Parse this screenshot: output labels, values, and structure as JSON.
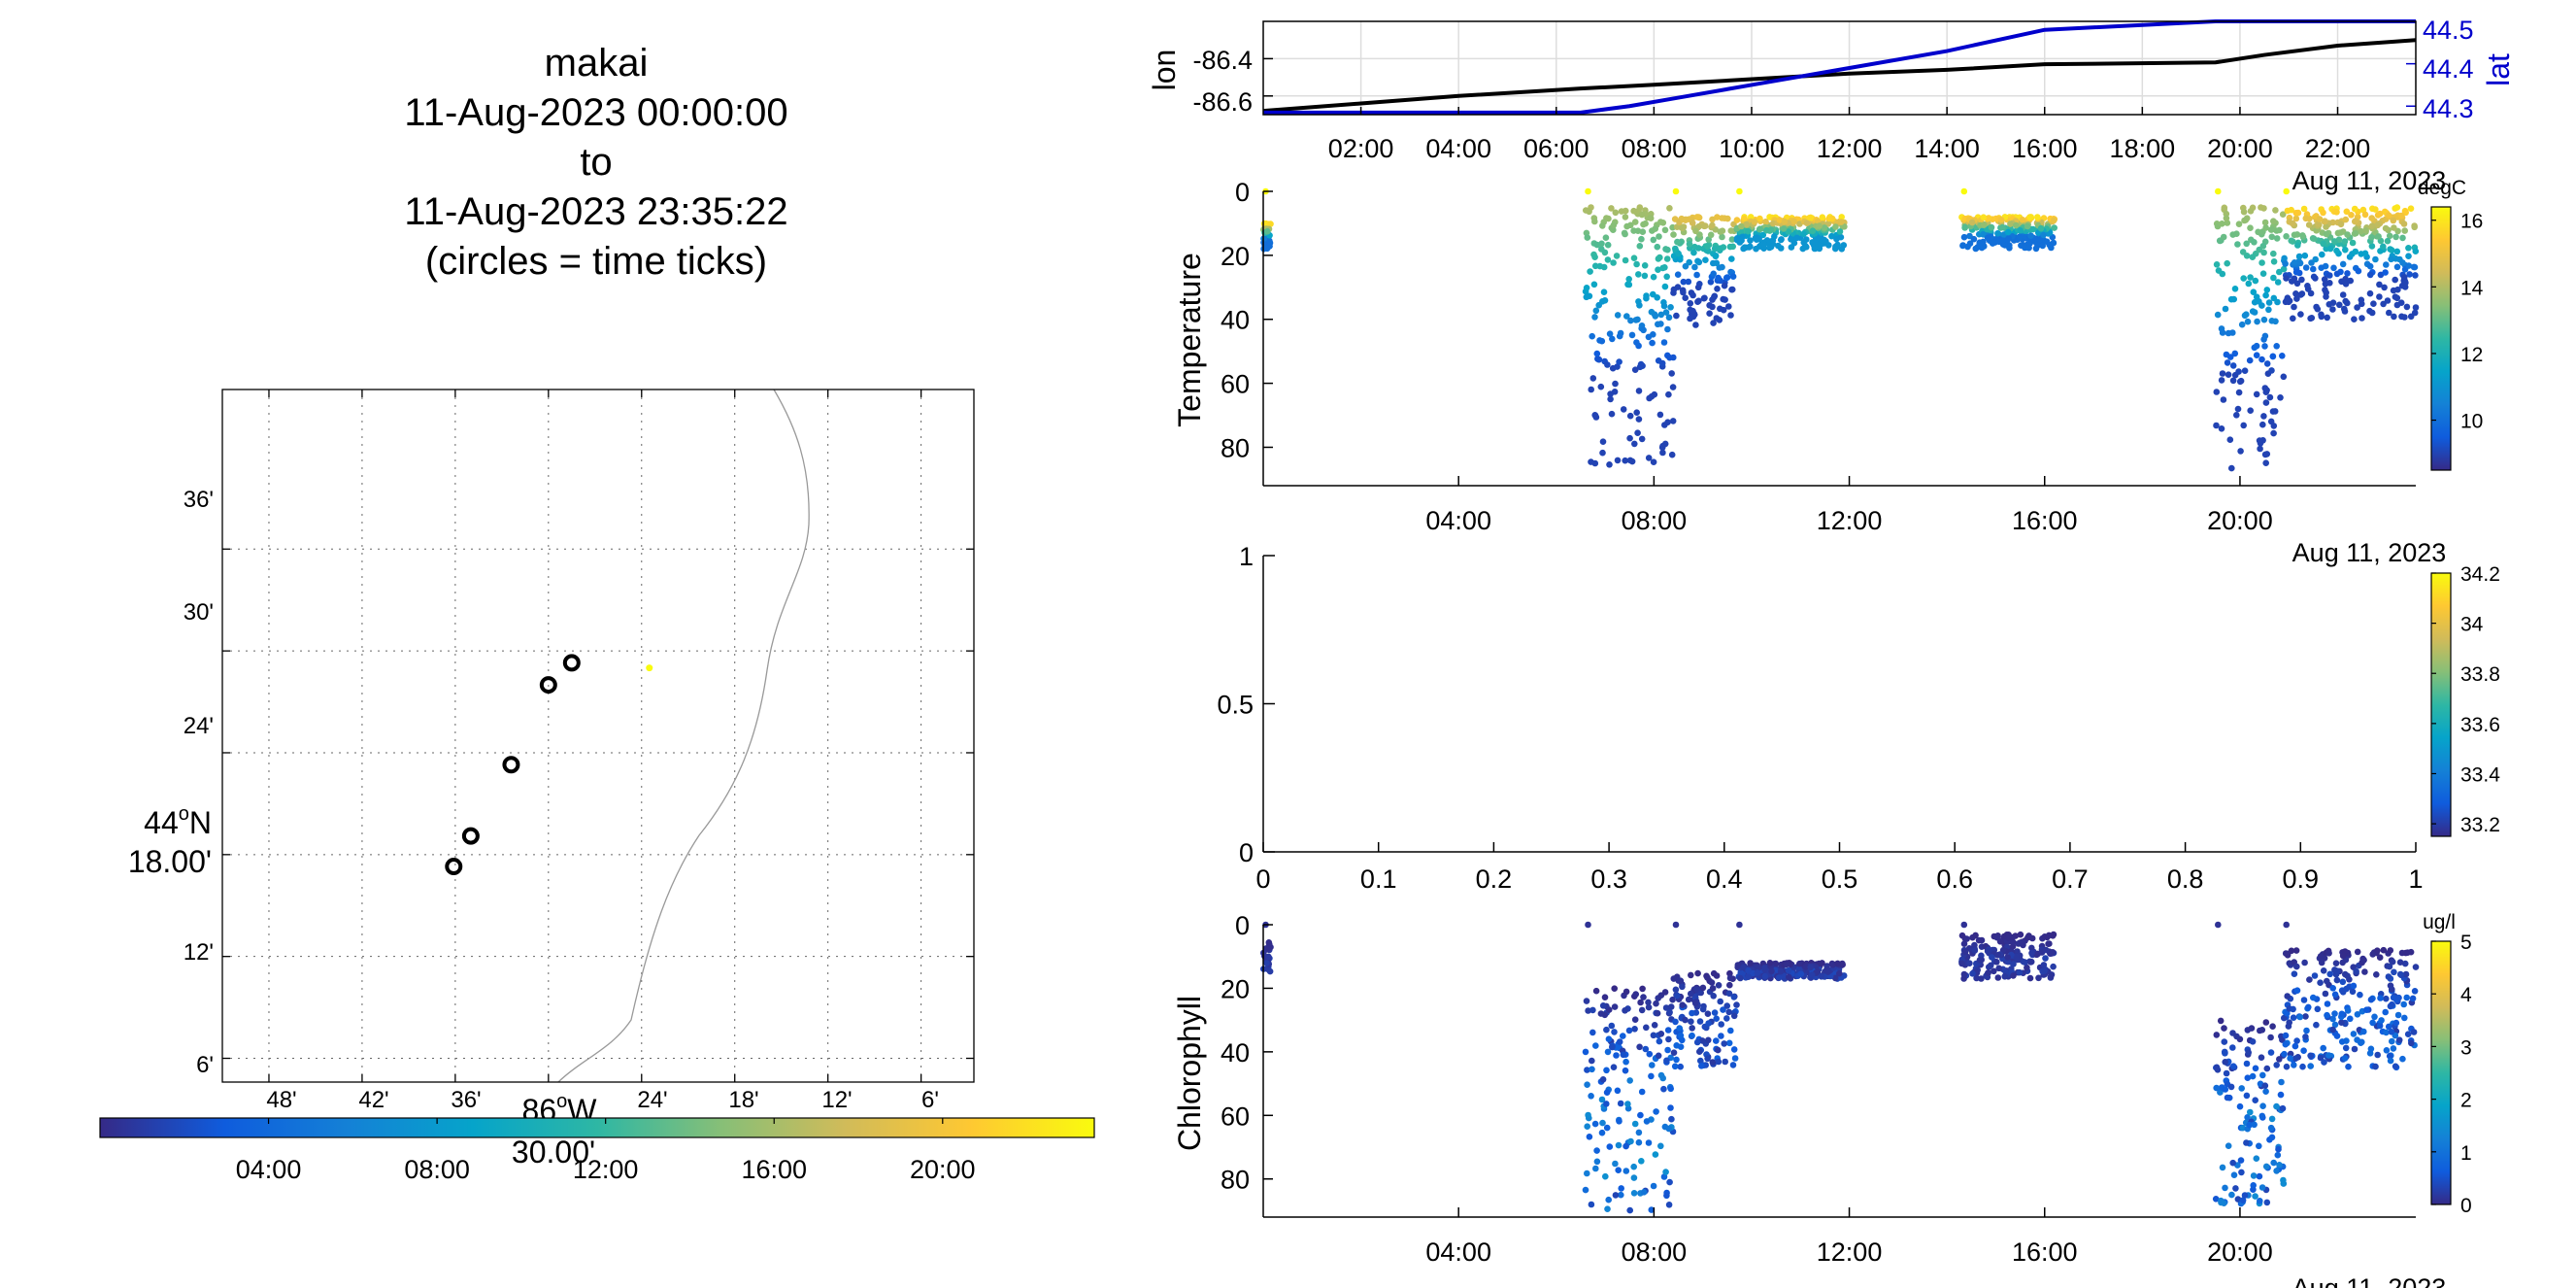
{
  "title": {
    "lines": [
      "makai",
      "11-Aug-2023 00:00:00",
      "to",
      "11-Aug-2023 23:35:22",
      "(circles = time ticks)"
    ]
  },
  "map": {
    "lat_labels": [
      "36'",
      "30'",
      "24'",
      "18.00'",
      "12'",
      "6'"
    ],
    "lat_degree_label": "44",
    "lat_degree_suffix": "N",
    "lon_labels": [
      "48'",
      "42'",
      "36'",
      "30.00'",
      "24'",
      "18'",
      "12'",
      "6'"
    ],
    "lon_degree_label": "86",
    "lon_degree_suffix": "W",
    "time_circles": [
      {
        "lon_min": 28.5,
        "lat_min": 29.3
      },
      {
        "lon_min": 30.0,
        "lat_min": 28.0
      },
      {
        "lon_min": 32.4,
        "lat_min": 23.3
      },
      {
        "lon_min": 35.0,
        "lat_min": 19.1
      },
      {
        "lon_min": 36.1,
        "lat_min": 17.3
      }
    ],
    "yellow_point": {
      "lon_min": 23.5,
      "lat_min": 29.0
    },
    "colorbar_ticks": [
      "04:00",
      "08:00",
      "12:00",
      "16:00",
      "20:00"
    ],
    "colorbar_range_hours": [
      0,
      23.6
    ]
  },
  "chart_data": [
    {
      "type": "line",
      "name": "lon-lat",
      "xlabel": "Aug 11, 2023",
      "x_ticks": [
        "02:00",
        "04:00",
        "06:00",
        "08:00",
        "10:00",
        "12:00",
        "14:00",
        "16:00",
        "18:00",
        "20:00",
        "22:00"
      ],
      "xlim_hours": [
        0,
        23.6
      ],
      "left_axis": {
        "label": "lon",
        "ticks": [
          "-86.4",
          "-86.6"
        ],
        "ylim": [
          -86.7,
          -86.2
        ],
        "color": "#000000"
      },
      "right_axis": {
        "label": "lat",
        "ticks": [
          "44.5",
          "44.4",
          "44.3"
        ],
        "ylim": [
          44.28,
          44.5
        ],
        "color": "#0000cc"
      },
      "series": [
        {
          "axis": "left",
          "color": "#000000",
          "x": [
            0,
            2,
            4,
            6.5,
            8,
            10,
            12,
            14,
            16,
            19.5,
            20.5,
            22,
            23.6
          ],
          "y": [
            -86.68,
            -86.64,
            -86.6,
            -86.56,
            -86.54,
            -86.51,
            -86.48,
            -86.46,
            -86.43,
            -86.42,
            -86.38,
            -86.33,
            -86.3
          ]
        },
        {
          "axis": "right",
          "color": "#0000cc",
          "x": [
            0,
            6.5,
            7.5,
            8.5,
            10,
            12,
            14,
            16,
            19.5,
            23.6
          ],
          "y": [
            44.285,
            44.285,
            44.3,
            44.32,
            44.35,
            44.39,
            44.43,
            44.48,
            44.5,
            44.5
          ]
        }
      ]
    },
    {
      "type": "scatter",
      "name": "temperature",
      "ylabel": "Temperature",
      "xlabel": "Aug 11, 2023",
      "x_ticks": [
        "04:00",
        "08:00",
        "12:00",
        "16:00",
        "20:00"
      ],
      "y_ticks": [
        "0",
        "20",
        "40",
        "60",
        "80"
      ],
      "ylim": [
        0,
        92
      ],
      "xlim_hours": [
        0,
        23.6
      ],
      "colorbar": {
        "unit": "degC",
        "ticks": [
          "16",
          "14",
          "12",
          "10"
        ],
        "range": [
          8.5,
          16.4
        ]
      },
      "segments": [
        {
          "t0": 0.0,
          "t1": 0.15,
          "dmin": 10,
          "dmax": 18,
          "surf": 16,
          "deep": 10
        },
        {
          "t0": 6.6,
          "t1": 8.4,
          "dmin": 5,
          "dmax": 86,
          "surf": 14,
          "deep": 9
        },
        {
          "t0": 8.4,
          "t1": 9.7,
          "dmin": 8,
          "dmax": 42,
          "surf": 15,
          "deep": 9
        },
        {
          "t0": 9.7,
          "t1": 11.9,
          "dmin": 8,
          "dmax": 18,
          "surf": 16,
          "deep": 11
        },
        {
          "t0": 14.3,
          "t1": 16.2,
          "dmin": 8,
          "dmax": 18,
          "surf": 16,
          "deep": 10
        },
        {
          "t0": 19.5,
          "t1": 20.9,
          "dmin": 5,
          "dmax": 88,
          "surf": 14,
          "deep": 9
        },
        {
          "t0": 20.9,
          "t1": 23.6,
          "dmin": 5,
          "dmax": 40,
          "surf": 16,
          "deep": 9
        }
      ]
    },
    {
      "type": "scatter",
      "name": "salinity",
      "ylabel": "",
      "x_ticks": [
        "0",
        "0.1",
        "0.2",
        "0.3",
        "0.4",
        "0.5",
        "0.6",
        "0.7",
        "0.8",
        "0.9",
        "1"
      ],
      "y_ticks": [
        "1",
        "0.5",
        "0"
      ],
      "xlim": [
        0,
        1
      ],
      "ylim": [
        0,
        1
      ],
      "colorbar": {
        "unit": "",
        "ticks": [
          "34.2",
          "34",
          "33.8",
          "33.6",
          "33.4",
          "33.2"
        ],
        "range": [
          33.15,
          34.2
        ]
      },
      "points": []
    },
    {
      "type": "scatter",
      "name": "chlorophyll",
      "ylabel": "Chlorophyll",
      "xlabel": "Aug 11, 2023",
      "x_ticks": [
        "04:00",
        "08:00",
        "12:00",
        "16:00",
        "20:00"
      ],
      "y_ticks": [
        "0",
        "20",
        "40",
        "60",
        "80"
      ],
      "ylim": [
        0,
        92
      ],
      "xlim_hours": [
        0,
        23.6
      ],
      "colorbar": {
        "unit": "ug/l",
        "ticks": [
          "5",
          "4",
          "3",
          "2",
          "1",
          "0"
        ],
        "range": [
          0,
          5
        ]
      },
      "segments": [
        {
          "t0": 0.0,
          "t1": 0.15,
          "dmin": 5,
          "dmax": 15,
          "cmax": 0.3
        },
        {
          "t0": 6.6,
          "t1": 8.4,
          "dmin": 20,
          "dmax": 90,
          "cmax": 1.6
        },
        {
          "t0": 8.4,
          "t1": 9.7,
          "dmin": 15,
          "dmax": 45,
          "cmax": 0.8
        },
        {
          "t0": 9.7,
          "t1": 11.9,
          "dmin": 12,
          "dmax": 17,
          "cmax": 0.4
        },
        {
          "t0": 14.3,
          "t1": 16.2,
          "dmin": 3,
          "dmax": 17,
          "cmax": 0.3
        },
        {
          "t0": 19.5,
          "t1": 20.9,
          "dmin": 30,
          "dmax": 88,
          "cmax": 1.5
        },
        {
          "t0": 20.9,
          "t1": 23.6,
          "dmin": 8,
          "dmax": 45,
          "cmax": 1.0
        }
      ]
    }
  ],
  "colors": {
    "parula": [
      "#352a87",
      "#0f5cdd",
      "#1481d6",
      "#06a4ca",
      "#2eb7a4",
      "#87bf77",
      "#d1bb59",
      "#fec832",
      "#f9fb0e"
    ]
  }
}
